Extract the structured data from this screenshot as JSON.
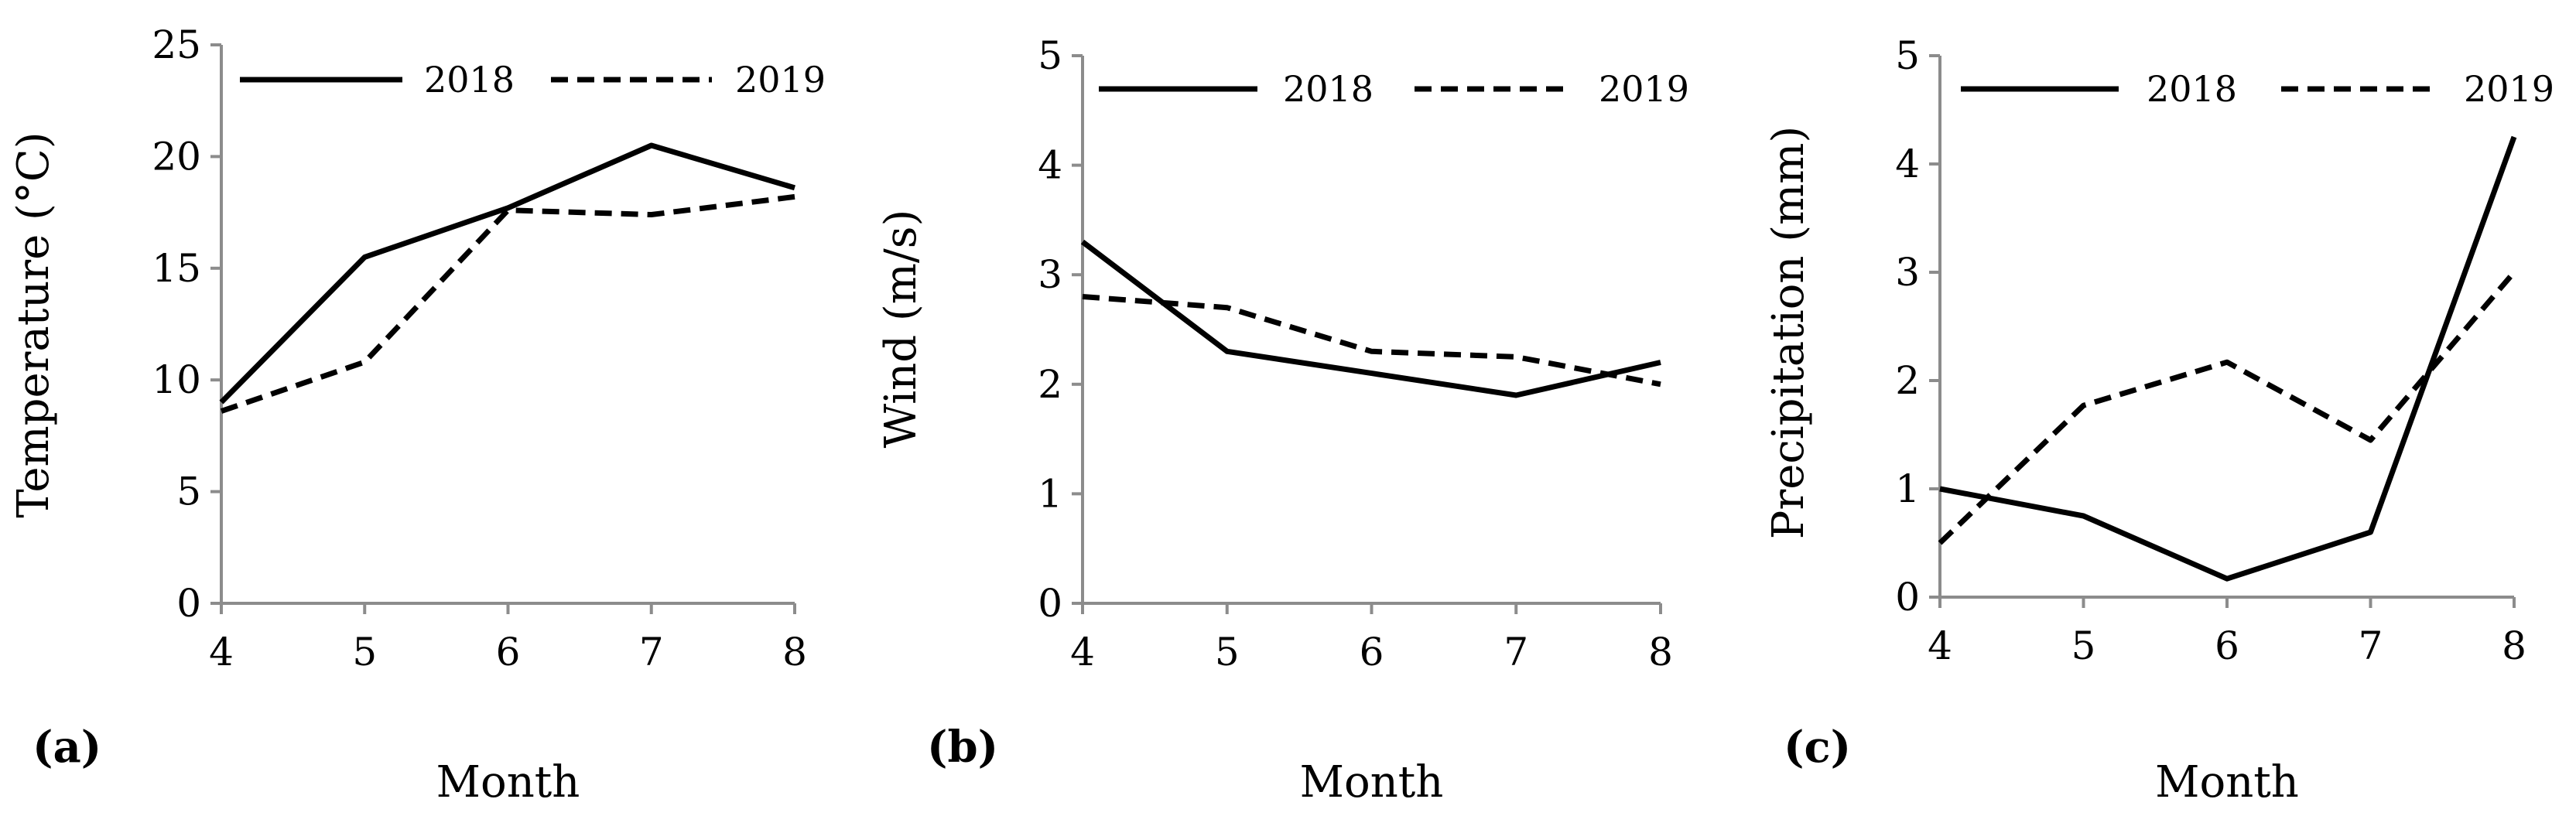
{
  "chart_data": [
    {
      "type": "line",
      "panel_label": "(a)",
      "title": "",
      "xlabel": "Month",
      "ylabel": "Temperature (°C)",
      "x": [
        4,
        5,
        6,
        7,
        8
      ],
      "xlim": [
        4,
        8
      ],
      "ylim": [
        0,
        25
      ],
      "yticks": [
        0,
        5,
        10,
        15,
        20,
        25
      ],
      "grid": false,
      "legend_position": "top",
      "series": [
        {
          "name": "2018",
          "style": "solid",
          "values": [
            9.0,
            15.5,
            17.7,
            20.5,
            18.6
          ]
        },
        {
          "name": "2019",
          "style": "dashed",
          "values": [
            8.6,
            10.8,
            17.6,
            17.4,
            18.2
          ]
        }
      ]
    },
    {
      "type": "line",
      "panel_label": "(b)",
      "title": "",
      "xlabel": "Month",
      "ylabel": "Wind (m/s)",
      "x": [
        4,
        5,
        6,
        7,
        8
      ],
      "xlim": [
        4,
        8
      ],
      "ylim": [
        0,
        5
      ],
      "yticks": [
        0,
        1,
        2,
        3,
        4,
        5
      ],
      "grid": false,
      "legend_position": "top",
      "series": [
        {
          "name": "2018",
          "style": "solid",
          "values": [
            3.3,
            2.3,
            2.1,
            1.9,
            2.2
          ]
        },
        {
          "name": "2019",
          "style": "dashed",
          "values": [
            2.8,
            2.7,
            2.3,
            2.25,
            2.0
          ]
        }
      ]
    },
    {
      "type": "line",
      "panel_label": "(c)",
      "title": "",
      "xlabel": "Month",
      "ylabel": "Precipitation (mm)",
      "x": [
        4,
        5,
        6,
        7,
        8
      ],
      "xlim": [
        4,
        8
      ],
      "ylim": [
        0,
        5
      ],
      "yticks": [
        0,
        1,
        2,
        3,
        4,
        5
      ],
      "grid": false,
      "legend_position": "top",
      "series": [
        {
          "name": "2018",
          "style": "solid",
          "values": [
            1.0,
            0.75,
            0.17,
            0.6,
            4.25
          ]
        },
        {
          "name": "2019",
          "style": "dashed",
          "values": [
            0.5,
            1.77,
            2.17,
            1.45,
            3.0
          ]
        }
      ]
    }
  ]
}
